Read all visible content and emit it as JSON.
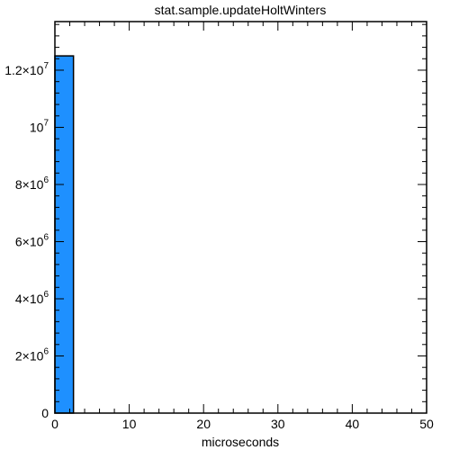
{
  "chart_data": {
    "type": "bar",
    "title": "stat.sample.updateHoltWinters",
    "xlabel": "microseconds",
    "ylabel": "",
    "xlim": [
      0,
      50
    ],
    "ylim": [
      0,
      13700000
    ],
    "grid": false,
    "bar_color": "#1e90ff",
    "bars": [
      {
        "x0": 0,
        "x1": 2.5,
        "value": 12500000
      }
    ],
    "x_ticks": [
      {
        "value": 0,
        "label": "0"
      },
      {
        "value": 10,
        "label": "10"
      },
      {
        "value": 20,
        "label": "20"
      },
      {
        "value": 30,
        "label": "30"
      },
      {
        "value": 40,
        "label": "40"
      },
      {
        "value": 50,
        "label": "50"
      }
    ],
    "x_minor_step": 2,
    "y_ticks": [
      {
        "value": 0,
        "mantissa": "0",
        "exponent": ""
      },
      {
        "value": 2000000,
        "mantissa": "2×10",
        "exponent": "6"
      },
      {
        "value": 4000000,
        "mantissa": "4×10",
        "exponent": "6"
      },
      {
        "value": 6000000,
        "mantissa": "6×10",
        "exponent": "6"
      },
      {
        "value": 8000000,
        "mantissa": "8×10",
        "exponent": "6"
      },
      {
        "value": 10000000,
        "mantissa": "10",
        "exponent": "7"
      },
      {
        "value": 12000000,
        "mantissa": "1.2×10",
        "exponent": "7"
      }
    ],
    "y_minor_step": 400000
  }
}
